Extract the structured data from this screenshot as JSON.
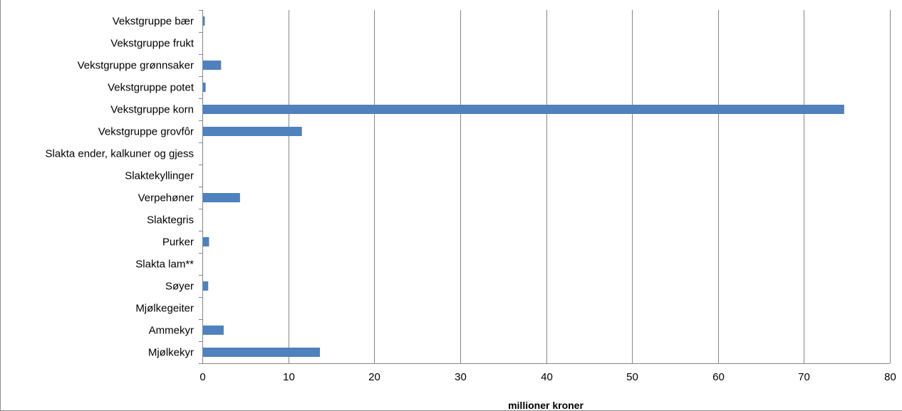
{
  "chart_data": {
    "type": "bar",
    "orientation": "horizontal",
    "categories": [
      "Vekstgruppe bær",
      "Vekstgruppe frukt",
      "Vekstgruppe grønnsaker",
      "Vekstgruppe potet",
      "Vekstgruppe korn",
      "Vekstgruppe grovfôr",
      "Slakta ender, kalkuner og gjess",
      "Slaktekyllinger",
      "Verpehøner",
      "Slaktegris",
      "Purker",
      "Slakta lam**",
      "Søyer",
      "Mjølkegeiter",
      "Ammekyr",
      "Mjølkekyr"
    ],
    "values": [
      0.2,
      0,
      2.1,
      0.3,
      74.6,
      11.5,
      0,
      0,
      4.3,
      0,
      0.7,
      0,
      0.6,
      0,
      2.4,
      13.6
    ],
    "xlabel": "millioner kroner",
    "ylabel": "",
    "xlim": [
      0,
      80
    ],
    "xticks": [
      "0",
      "10",
      "20",
      "30",
      "40",
      "50",
      "60",
      "70",
      "80"
    ],
    "grid": "vertical",
    "legend": "none",
    "bar_color": "#4F81BD"
  }
}
